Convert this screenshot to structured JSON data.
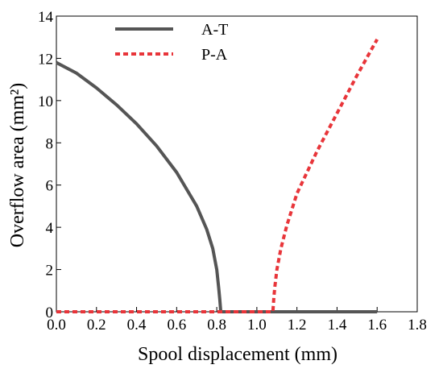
{
  "chart_data": {
    "type": "line",
    "title": "",
    "xlabel": "Spool displacement  (mm)",
    "ylabel": "Overflow area  (mm²)",
    "xlim": [
      0,
      1.8
    ],
    "ylim": [
      0,
      14
    ],
    "xticks": [
      "0.0",
      "0.2",
      "0.4",
      "0.6",
      "0.8",
      "1.0",
      "1.2",
      "1.4",
      "1.6",
      "1.8"
    ],
    "yticks": [
      "0",
      "2",
      "4",
      "6",
      "8",
      "10",
      "12",
      "14"
    ],
    "grid": false,
    "legend_position": "top",
    "series": [
      {
        "name": "A-T",
        "color": "#555555",
        "style": "solid",
        "x": [
          0,
          0.1,
          0.2,
          0.3,
          0.4,
          0.5,
          0.6,
          0.7,
          0.75,
          0.78,
          0.8,
          0.81,
          0.815,
          0.82,
          0.82,
          1.0,
          1.2,
          1.4,
          1.6
        ],
        "y": [
          11.8,
          11.3,
          10.6,
          9.8,
          8.9,
          7.85,
          6.6,
          5.0,
          3.9,
          3.0,
          2.0,
          1.1,
          0.6,
          0.0,
          0.0,
          0.0,
          0.0,
          0.0,
          0.0
        ]
      },
      {
        "name": "P-A",
        "color": "#e8353a",
        "style": "dashed",
        "x": [
          0,
          0.2,
          0.4,
          0.6,
          0.8,
          1.0,
          1.08,
          1.085,
          1.09,
          1.1,
          1.12,
          1.15,
          1.2,
          1.3,
          1.4,
          1.5,
          1.6
        ],
        "y": [
          0,
          0,
          0,
          0,
          0,
          0,
          0,
          0.7,
          1.2,
          2.0,
          3.0,
          4.1,
          5.6,
          7.6,
          9.4,
          11.2,
          12.9
        ]
      }
    ]
  }
}
